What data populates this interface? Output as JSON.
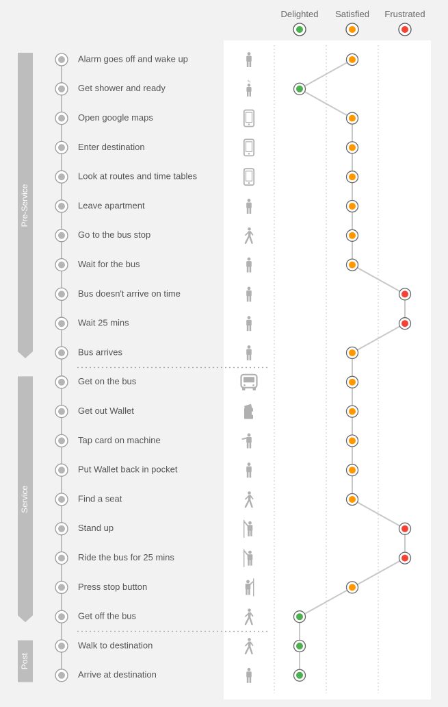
{
  "emotions": [
    {
      "key": "delighted",
      "label": "Delighted",
      "color": "#4caf50"
    },
    {
      "key": "satisfied",
      "label": "Satisfied",
      "color": "#ff9800"
    },
    {
      "key": "frustrated",
      "label": "Frustrated",
      "color": "#f44336"
    }
  ],
  "phases": [
    {
      "label": "Pre-Service",
      "first_step": 0,
      "last_step": 10
    },
    {
      "label": "Service",
      "first_step": 11,
      "last_step": 19
    },
    {
      "label": "Post",
      "first_step": 20,
      "last_step": 21
    }
  ],
  "steps": [
    {
      "label": "Alarm goes off and wake up",
      "icon": "person-standing-icon",
      "emotion": "satisfied"
    },
    {
      "label": "Get shower and ready",
      "icon": "person-shower-icon",
      "emotion": "delighted"
    },
    {
      "label": "Open google maps",
      "icon": "smartphone-icon",
      "emotion": "satisfied"
    },
    {
      "label": "Enter destination",
      "icon": "smartphone-icon",
      "emotion": "satisfied"
    },
    {
      "label": "Look at routes and time tables",
      "icon": "smartphone-icon",
      "emotion": "satisfied"
    },
    {
      "label": "Leave apartment",
      "icon": "person-standing-icon",
      "emotion": "satisfied"
    },
    {
      "label": "Go to the bus stop",
      "icon": "person-walking-icon",
      "emotion": "satisfied"
    },
    {
      "label": "Wait for the bus",
      "icon": "person-standing-icon",
      "emotion": "satisfied"
    },
    {
      "label": "Bus doesn't arrive on time",
      "icon": "person-standing-icon",
      "emotion": "frustrated"
    },
    {
      "label": "Wait 25 mins",
      "icon": "person-standing-icon",
      "emotion": "frustrated"
    },
    {
      "label": "Bus arrives",
      "icon": "person-standing-icon",
      "emotion": "satisfied"
    },
    {
      "label": "Get on the bus",
      "icon": "bus-icon",
      "emotion": "satisfied"
    },
    {
      "label": "Get out Wallet",
      "icon": "wallet-icon",
      "emotion": "satisfied"
    },
    {
      "label": "Tap card on machine",
      "icon": "person-tapping-icon",
      "emotion": "satisfied"
    },
    {
      "label": "Put Wallet back in pocket",
      "icon": "person-standing-icon",
      "emotion": "satisfied"
    },
    {
      "label": "Find a seat",
      "icon": "person-walking-icon",
      "emotion": "satisfied"
    },
    {
      "label": "Stand up",
      "icon": "person-holding-pole-icon",
      "emotion": "frustrated"
    },
    {
      "label": "Ride the bus for 25 mins",
      "icon": "person-holding-pole-icon",
      "emotion": "frustrated"
    },
    {
      "label": "Press stop button",
      "icon": "person-pressing-icon",
      "emotion": "satisfied"
    },
    {
      "label": "Get off the bus",
      "icon": "person-walking-icon",
      "emotion": "delighted"
    },
    {
      "label": "Walk to destination",
      "icon": "person-walking-icon",
      "emotion": "delighted"
    },
    {
      "label": "Arrive at destination",
      "icon": "person-standing-icon",
      "emotion": "delighted"
    }
  ],
  "colors": {
    "phase_bar": "#bdbdbd",
    "timeline": "#a8a8a8",
    "icon": "#b0b0b0",
    "connector": "#c8c8c8"
  }
}
